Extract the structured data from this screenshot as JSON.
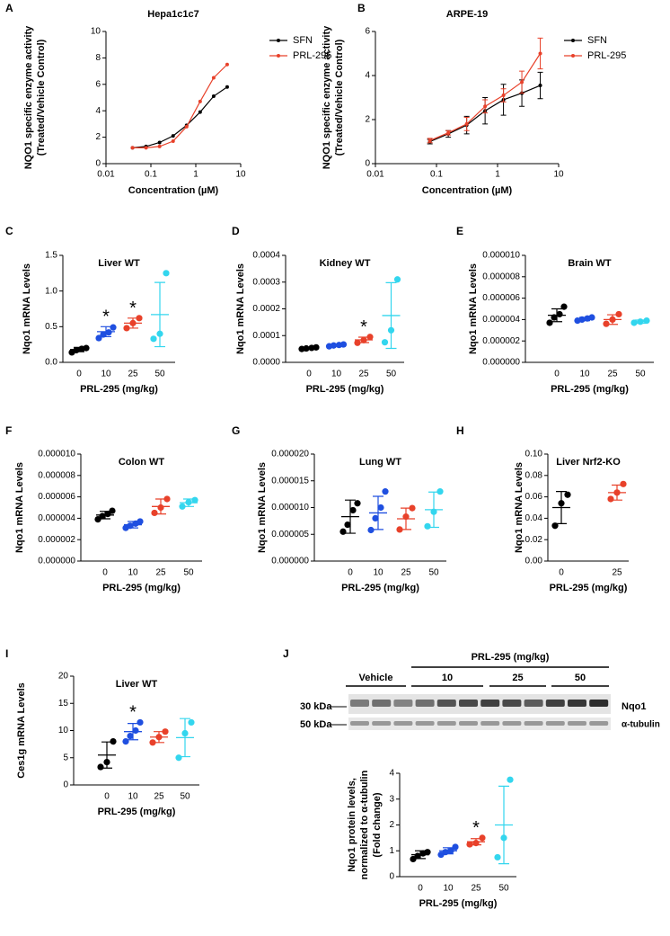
{
  "chart_data": [
    {
      "type": "line",
      "panel": "A",
      "title": "Hepa1c1c7",
      "xlabel": "Concentration (µM)",
      "ylabel": [
        "NQO1 specific enzyme activity",
        "(Treated/Vehicle Control)"
      ],
      "x": [
        0.039,
        0.078,
        0.156,
        0.3125,
        0.625,
        1.25,
        2.5,
        5
      ],
      "xscale": "log",
      "xlim": [
        0.01,
        10
      ],
      "xticks": [
        0.01,
        0.1,
        1,
        10
      ],
      "ylim": [
        0,
        10
      ],
      "yticks": [
        0,
        2,
        4,
        6,
        8,
        10
      ],
      "legend": "right",
      "series": [
        {
          "name": "SFN",
          "color": "#000000",
          "values": [
            1.2,
            1.3,
            1.6,
            2.1,
            2.9,
            3.9,
            5.1,
            5.8
          ]
        },
        {
          "name": "PRL-295",
          "color": "#e8412a",
          "values": [
            1.2,
            1.2,
            1.3,
            1.7,
            2.8,
            4.7,
            6.5,
            7.5
          ]
        }
      ]
    },
    {
      "type": "line",
      "panel": "B",
      "title": "ARPE-19",
      "xlabel": "Concentration (µM)",
      "ylabel": [
        "NQO1 specific enzyme activity",
        "(Treated/Vehicle Control)"
      ],
      "x": [
        0.078,
        0.156,
        0.3125,
        0.625,
        1.25,
        2.5,
        5
      ],
      "xscale": "log",
      "xlim": [
        0.01,
        10
      ],
      "xticks": [
        0.01,
        0.1,
        1,
        10
      ],
      "ylim": [
        0,
        6
      ],
      "yticks": [
        0,
        2,
        4,
        6
      ],
      "legend": "right",
      "series": [
        {
          "name": "SFN",
          "color": "#000000",
          "values": [
            1.0,
            1.35,
            1.75,
            2.4,
            2.9,
            3.2,
            3.55
          ],
          "errors": [
            0.1,
            0.15,
            0.4,
            0.6,
            0.7,
            0.6,
            0.6
          ]
        },
        {
          "name": "PRL-295",
          "color": "#e8412a",
          "values": [
            1.05,
            1.4,
            1.8,
            2.6,
            3.1,
            3.7,
            5.0
          ],
          "errors": [
            0.1,
            0.1,
            0.3,
            0.3,
            0.3,
            0.5,
            0.7
          ]
        }
      ]
    },
    {
      "type": "dot",
      "panel": "C",
      "title": "Liver WT",
      "xlabel": "PRL-295 (mg/kg)",
      "ylabel": "Nqo1 mRNA Levels",
      "categories": [
        "0",
        "10",
        "25",
        "50"
      ],
      "ylim": [
        0,
        1.5
      ],
      "yticks": [
        {
          "value": 0,
          "label": "0.0"
        },
        0.5,
        {
          "value": 1,
          "label": "1.0"
        },
        1.5
      ],
      "groups": [
        {
          "color": "#000000",
          "points": [
            0.14,
            0.17,
            0.19,
            0.2
          ],
          "mean": 0.18,
          "sd": 0.03
        },
        {
          "color": "#1f4fe0",
          "points": [
            0.34,
            0.39,
            0.42,
            0.49
          ],
          "mean": 0.43,
          "sd": 0.07,
          "annotation": "*"
        },
        {
          "color": "#e8412a",
          "points": [
            0.48,
            0.55,
            0.62
          ],
          "mean": 0.55,
          "sd": 0.07,
          "annotation": "*"
        },
        {
          "color": "#33d6ee",
          "points": [
            0.33,
            0.4,
            1.25
          ],
          "mean": 0.67,
          "sd": 0.45
        }
      ]
    },
    {
      "type": "dot",
      "panel": "D",
      "title": "Kidney WT",
      "xlabel": "PRL-295 (mg/kg)",
      "ylabel": "Nqo1 mRNA Levels",
      "categories": [
        "0",
        "10",
        "25",
        "50"
      ],
      "ylim": [
        0,
        0.0004
      ],
      "yticks": [
        {
          "value": 0,
          "label": "0.0000"
        },
        {
          "value": 0.0001,
          "label": "0.0001"
        },
        {
          "value": 0.0002,
          "label": "0.0002"
        },
        {
          "value": 0.0003,
          "label": "0.0003"
        },
        {
          "value": 0.0004,
          "label": "0.0004"
        }
      ],
      "groups": [
        {
          "color": "#000000",
          "points": [
            5e-05,
            5.2e-05,
            5.4e-05,
            5.6e-05
          ],
          "mean": 5.4e-05,
          "sd": 3e-06
        },
        {
          "color": "#1f4fe0",
          "points": [
            6e-05,
            6.3e-05,
            6.5e-05,
            6.7e-05
          ],
          "mean": 6.4e-05,
          "sd": 4e-06
        },
        {
          "color": "#e8412a",
          "points": [
            7.3e-05,
            8.3e-05,
            9.5e-05
          ],
          "mean": 8.4e-05,
          "sd": 1e-05,
          "annotation": "*"
        },
        {
          "color": "#33d6ee",
          "points": [
            7.5e-05,
            0.00012,
            0.00031
          ],
          "mean": 0.000175,
          "sd": 0.000123
        }
      ]
    },
    {
      "type": "dot",
      "panel": "E",
      "title": "Brain WT",
      "xlabel": "PRL-295 (mg/kg)",
      "ylabel": "Nqo1 mRNA Levels",
      "categories": [
        "0",
        "10",
        "25",
        "50"
      ],
      "ylim": [
        0,
        1e-05
      ],
      "yticks": [
        {
          "value": 0,
          "label": "0.000000"
        },
        {
          "value": 2e-06,
          "label": "0.000002"
        },
        {
          "value": 4e-06,
          "label": "0.000004"
        },
        {
          "value": 6e-06,
          "label": "0.000006"
        },
        {
          "value": 8e-06,
          "label": "0.000008"
        },
        {
          "value": 1e-05,
          "label": "0.000010"
        }
      ],
      "groups": [
        {
          "color": "#000000",
          "points": [
            3.7e-06,
            4.2e-06,
            4.5e-06,
            5.2e-06
          ],
          "mean": 4.4e-06,
          "sd": 6e-07
        },
        {
          "color": "#1f4fe0",
          "points": [
            3.9e-06,
            4e-06,
            4.1e-06,
            4.2e-06
          ],
          "mean": 4.05e-06,
          "sd": 1.5e-07
        },
        {
          "color": "#e8412a",
          "points": [
            3.6e-06,
            4e-06,
            4.5e-06
          ],
          "mean": 4e-06,
          "sd": 4.5e-07
        },
        {
          "color": "#33d6ee",
          "points": [
            3.7e-06,
            3.8e-06,
            3.9e-06
          ],
          "mean": 3.8e-06,
          "sd": 1.5e-07
        }
      ]
    },
    {
      "type": "dot",
      "panel": "F",
      "title": "Colon WT",
      "xlabel": "PRL-295 (mg/kg)",
      "ylabel": "Nqo1 mRNA Levels",
      "categories": [
        "0",
        "10",
        "25",
        "50"
      ],
      "ylim": [
        0,
        1e-05
      ],
      "yticks": [
        {
          "value": 0,
          "label": "0.000000"
        },
        {
          "value": 2e-06,
          "label": "0.000002"
        },
        {
          "value": 4e-06,
          "label": "0.000004"
        },
        {
          "value": 6e-06,
          "label": "0.000006"
        },
        {
          "value": 8e-06,
          "label": "0.000008"
        },
        {
          "value": 1e-05,
          "label": "0.000010"
        }
      ],
      "groups": [
        {
          "color": "#000000",
          "points": [
            3.9e-06,
            4.2e-06,
            4.4e-06,
            4.7e-06
          ],
          "mean": 4.3e-06,
          "sd": 3.5e-07
        },
        {
          "color": "#1f4fe0",
          "points": [
            3.1e-06,
            3.3e-06,
            3.5e-06,
            3.7e-06
          ],
          "mean": 3.4e-06,
          "sd": 3e-07
        },
        {
          "color": "#e8412a",
          "points": [
            4.5e-06,
            5e-06,
            5.8e-06
          ],
          "mean": 5.1e-06,
          "sd": 7e-07
        },
        {
          "color": "#33d6ee",
          "points": [
            5.1e-06,
            5.5e-06,
            5.7e-06
          ],
          "mean": 5.45e-06,
          "sd": 3.5e-07
        }
      ]
    },
    {
      "type": "dot",
      "panel": "G",
      "title": "Lung WT",
      "xlabel": "PRL-295 (mg/kg)",
      "ylabel": "Nqo1 mRNA Levels",
      "categories": [
        "0",
        "10",
        "25",
        "50"
      ],
      "ylim": [
        0,
        2e-05
      ],
      "yticks": [
        {
          "value": 0,
          "label": "0.000000"
        },
        {
          "value": 5e-06,
          "label": "0.000005"
        },
        {
          "value": 1e-05,
          "label": "0.000010"
        },
        {
          "value": 1.5e-05,
          "label": "0.000015"
        },
        {
          "value": 2e-05,
          "label": "0.000020"
        }
      ],
      "groups": [
        {
          "color": "#000000",
          "points": [
            5.5e-06,
            6.8e-06,
            9.5e-06,
            1.08e-05
          ],
          "mean": 8.3e-06,
          "sd": 3.1e-06
        },
        {
          "color": "#1f4fe0",
          "points": [
            5.8e-06,
            8e-06,
            1e-05,
            1.3e-05
          ],
          "mean": 9e-06,
          "sd": 3.1e-06
        },
        {
          "color": "#e8412a",
          "points": [
            5.9e-06,
            8.3e-06,
            9.9e-06
          ],
          "mean": 7.9e-06,
          "sd": 2e-06
        },
        {
          "color": "#33d6ee",
          "points": [
            6.5e-06,
            9.2e-06,
            1.3e-05
          ],
          "mean": 9.6e-06,
          "sd": 3.3e-06
        }
      ]
    },
    {
      "type": "dot",
      "panel": "H",
      "title": "Liver Nrf2-KO",
      "xlabel": "PRL-295 (mg/kg)",
      "ylabel": "Nqo1 mRNA Levels",
      "categories": [
        "0",
        "25"
      ],
      "ylim": [
        0,
        0.1
      ],
      "yticks": [
        {
          "value": 0,
          "label": "0.00"
        },
        0.02,
        0.04,
        0.06,
        0.08,
        {
          "value": 0.1,
          "label": "0.10"
        }
      ],
      "groups": [
        {
          "color": "#000000",
          "points": [
            0.033,
            0.054,
            0.062
          ],
          "mean": 0.05,
          "sd": 0.015
        },
        {
          "color": "#e8412a",
          "points": [
            0.058,
            0.064,
            0.072
          ],
          "mean": 0.064,
          "sd": 0.007
        }
      ]
    },
    {
      "type": "dot",
      "panel": "I",
      "title": "Liver WT",
      "xlabel": "PRL-295 (mg/kg)",
      "ylabel": "Ces1g mRNA Levels",
      "categories": [
        "0",
        "10",
        "25",
        "50"
      ],
      "ylim": [
        0,
        20
      ],
      "yticks": [
        0,
        5,
        10,
        15,
        20
      ],
      "groups": [
        {
          "color": "#000000",
          "points": [
            3.3,
            4.2,
            8
          ],
          "mean": 5.5,
          "sd": 2.4
        },
        {
          "color": "#1f4fe0",
          "points": [
            8,
            9,
            10,
            11.5
          ],
          "mean": 9.8,
          "sd": 1.5,
          "annotation": "*"
        },
        {
          "color": "#e8412a",
          "points": [
            7.8,
            8.8,
            9.8
          ],
          "mean": 8.8,
          "sd": 1
        },
        {
          "color": "#33d6ee",
          "points": [
            5,
            9.5,
            11.5
          ],
          "mean": 8.7,
          "sd": 3.5
        }
      ]
    },
    {
      "type": "dot",
      "panel": "J",
      "xlabel": "PRL-295 (mg/kg)",
      "ylabel": [
        "Nqo1 protein levels,",
        "normalized to α-tubulin",
        "(Fold change)"
      ],
      "categories": [
        "0",
        "10",
        "25",
        "50"
      ],
      "ylim": [
        0,
        4
      ],
      "yticks": [
        0,
        1,
        2,
        3,
        4
      ],
      "groups": [
        {
          "color": "#000000",
          "points": [
            0.68,
            0.8,
            0.9,
            0.95
          ],
          "mean": 0.85,
          "sd": 0.15
        },
        {
          "color": "#1f4fe0",
          "points": [
            0.85,
            0.95,
            1,
            1.15
          ],
          "mean": 1,
          "sd": 0.12
        },
        {
          "color": "#e8412a",
          "points": [
            1.25,
            1.3,
            1.5
          ],
          "mean": 1.35,
          "sd": 0.12,
          "annotation": "*"
        },
        {
          "color": "#33d6ee",
          "points": [
            0.75,
            1.5,
            3.75
          ],
          "mean": 2,
          "sd": 1.5
        }
      ],
      "blot": {
        "header": "PRL-295 (mg/kg)",
        "groups": [
          "Vehicle",
          "10",
          "25",
          "50"
        ],
        "markers": [
          "30 kDa",
          "50 kDa"
        ],
        "bands": [
          "Nqo1",
          "α-tubulin"
        ]
      }
    }
  ]
}
